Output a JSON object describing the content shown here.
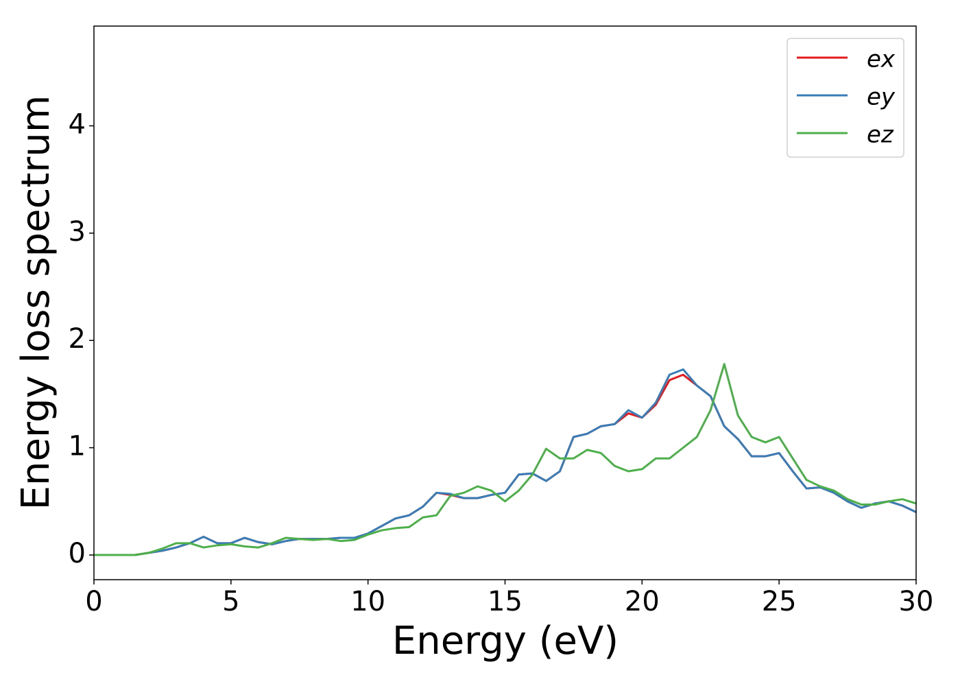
{
  "chart_data": {
    "type": "line",
    "xlabel": "Energy (eV)",
    "ylabel": "Energy loss spectrum",
    "x": [
      0,
      0.5,
      1,
      1.5,
      2,
      2.5,
      3,
      3.5,
      4,
      4.5,
      5,
      5.5,
      6,
      6.5,
      7,
      7.5,
      8,
      8.5,
      9,
      9.5,
      10,
      10.5,
      11,
      11.5,
      12,
      12.5,
      13,
      13.5,
      14,
      14.5,
      15,
      15.5,
      16,
      16.5,
      17,
      17.5,
      18,
      18.5,
      19,
      19.5,
      20,
      20.5,
      21,
      21.5,
      22,
      22.5,
      23,
      23.5,
      24,
      24.5,
      25,
      25.5,
      26,
      26.5,
      27,
      27.5,
      28,
      28.5,
      29,
      29.5,
      30
    ],
    "series": [
      {
        "name": "ex",
        "color": "#e41a1c",
        "values": [
          0,
          0,
          0,
          0,
          0.02,
          0.04,
          0.07,
          0.11,
          0.17,
          0.11,
          0.11,
          0.16,
          0.12,
          0.1,
          0.13,
          0.15,
          0.15,
          0.15,
          0.16,
          0.16,
          0.2,
          0.27,
          0.34,
          0.37,
          0.45,
          0.58,
          0.56,
          0.53,
          0.53,
          0.56,
          0.58,
          0.75,
          0.76,
          0.69,
          0.78,
          1.1,
          1.13,
          1.2,
          1.22,
          1.32,
          1.28,
          1.4,
          1.63,
          1.68,
          1.58,
          1.48,
          1.2,
          1.08,
          0.92,
          0.92,
          0.95,
          0.78,
          0.62,
          0.63,
          0.58,
          0.5,
          0.44,
          0.48,
          0.5,
          0.46,
          0.4
        ]
      },
      {
        "name": "ey",
        "color": "#377eb8",
        "values": [
          0,
          0,
          0,
          0,
          0.02,
          0.04,
          0.07,
          0.11,
          0.17,
          0.11,
          0.11,
          0.16,
          0.12,
          0.1,
          0.13,
          0.15,
          0.15,
          0.15,
          0.16,
          0.16,
          0.2,
          0.27,
          0.34,
          0.37,
          0.45,
          0.58,
          0.57,
          0.53,
          0.53,
          0.56,
          0.58,
          0.75,
          0.76,
          0.69,
          0.78,
          1.1,
          1.13,
          1.2,
          1.22,
          1.35,
          1.28,
          1.42,
          1.68,
          1.73,
          1.58,
          1.48,
          1.2,
          1.08,
          0.92,
          0.92,
          0.95,
          0.78,
          0.62,
          0.63,
          0.58,
          0.5,
          0.44,
          0.48,
          0.5,
          0.46,
          0.4
        ]
      },
      {
        "name": "ez",
        "color": "#4daf4a",
        "values": [
          0,
          0,
          0,
          0,
          0.02,
          0.06,
          0.11,
          0.11,
          0.07,
          0.09,
          0.1,
          0.08,
          0.07,
          0.11,
          0.16,
          0.15,
          0.14,
          0.15,
          0.13,
          0.14,
          0.19,
          0.23,
          0.25,
          0.26,
          0.35,
          0.37,
          0.55,
          0.58,
          0.64,
          0.6,
          0.5,
          0.6,
          0.75,
          0.99,
          0.9,
          0.9,
          0.98,
          0.95,
          0.83,
          0.78,
          0.8,
          0.9,
          0.9,
          1.0,
          1.1,
          1.35,
          1.78,
          1.3,
          1.1,
          1.05,
          1.1,
          0.9,
          0.7,
          0.64,
          0.6,
          0.52,
          0.47,
          0.47,
          0.5,
          0.52,
          0.48
        ]
      }
    ],
    "xlim": [
      0,
      30
    ],
    "xticks": [
      0,
      5,
      10,
      15,
      20,
      25,
      30
    ],
    "ylim": [
      -0.23,
      4.93
    ],
    "yticks": [
      0,
      1,
      2,
      3,
      4
    ],
    "grid": false,
    "legend": "upper right"
  }
}
